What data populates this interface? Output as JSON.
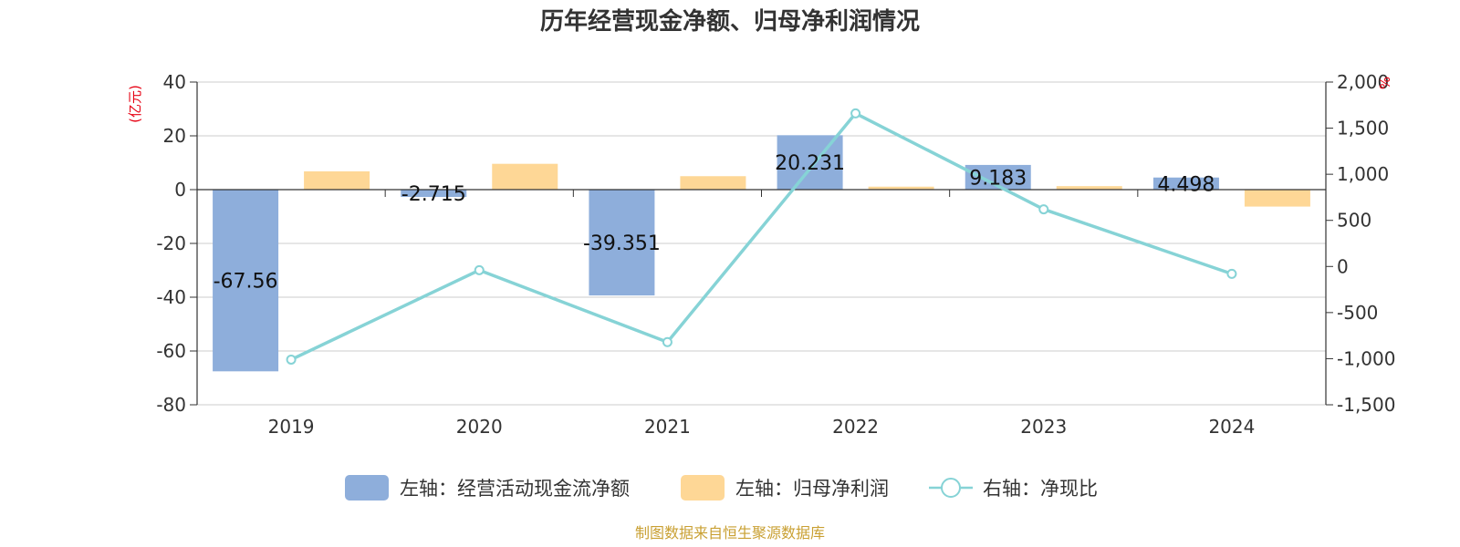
{
  "chart_data": {
    "type": "bar",
    "title": "历年经营现金净额、归母净利润情况",
    "categories": [
      "2019",
      "2020",
      "2021",
      "2022",
      "2023",
      "2024"
    ],
    "left_axis": {
      "unit": "(亿元)",
      "ylim": [
        -80,
        40
      ],
      "ticks": [
        "40",
        "20",
        "0",
        "-20",
        "-40",
        "-60",
        "-80"
      ]
    },
    "right_axis": {
      "unit": "%",
      "ylim": [
        -1500,
        2000
      ],
      "ticks": [
        "2,000",
        "1,500",
        "1,000",
        "500",
        "0",
        "-500",
        "-1,000",
        "-1,500"
      ]
    },
    "series": [
      {
        "name": "左轴：经营活动现金流净额",
        "axis": "left",
        "type": "bar",
        "color": "#8eaedb",
        "values": [
          -67.56,
          -2.715,
          -39.351,
          20.231,
          9.183,
          4.498
        ],
        "labels": [
          "-67.56",
          "-2.715",
          "-39.351",
          "20.231",
          "9.183",
          "4.498"
        ]
      },
      {
        "name": "左轴：归母净利润",
        "axis": "left",
        "type": "bar",
        "color": "#fed796",
        "values": [
          6.8,
          9.6,
          5.0,
          1.1,
          1.3,
          -6.3
        ]
      },
      {
        "name": "右轴：净现比",
        "axis": "right",
        "type": "line",
        "color": "#86d3d6",
        "values": [
          -1010,
          -40,
          -820,
          1660,
          620,
          -80
        ]
      }
    ],
    "grid": true,
    "legend_position": "bottom"
  },
  "source": "制图数据来自恒生聚源数据库"
}
